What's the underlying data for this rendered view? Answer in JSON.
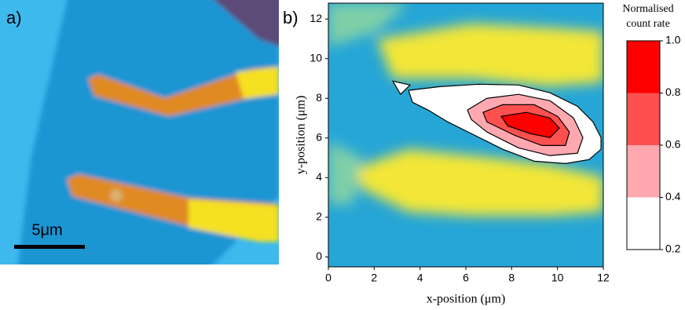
{
  "panel_a": {
    "label": "a)",
    "scale_bar_label": "5μm"
  },
  "chart_data": {
    "type": "contour",
    "label": "b)",
    "xlabel": "x-position (μm)",
    "ylabel": "y-position (μm)",
    "xlim": [
      0,
      12
    ],
    "ylim": [
      -0.5,
      12.8
    ],
    "xticks": [
      0,
      2,
      4,
      6,
      8,
      10,
      12
    ],
    "yticks": [
      0,
      2,
      4,
      6,
      8,
      10,
      12
    ],
    "contours": [
      {
        "level": 0.2,
        "x": [
          3.5,
          4.87,
          6.58,
          8.3,
          9.67,
          10.87,
          11.55,
          11.9,
          11.9,
          11.38,
          10.35,
          8.98,
          7.61,
          6.24,
          5.21,
          4.35,
          3.67
        ],
        "y": [
          8.4,
          8.59,
          8.71,
          8.67,
          8.28,
          7.6,
          6.81,
          6.02,
          5.43,
          4.91,
          4.71,
          4.83,
          5.43,
          6.22,
          6.81,
          7.41,
          7.8
        ]
      },
      {
        "level": 0.2,
        "x": [
          2.81,
          3.57,
          3.15
        ],
        "y": [
          8.87,
          8.67,
          8.2
        ]
      },
      {
        "level": 0.4,
        "x": [
          6.07,
          6.92,
          8.3,
          9.67,
          10.7,
          11.11,
          10.87,
          9.67,
          8.3,
          6.92,
          6.24
        ],
        "y": [
          7.41,
          8.0,
          8.2,
          7.88,
          7.01,
          6.02,
          5.23,
          5.11,
          5.5,
          6.3,
          6.93
        ]
      },
      {
        "level": 0.6,
        "x": [
          6.75,
          7.61,
          8.98,
          10.01,
          10.52,
          10.35,
          9.32,
          8.12,
          6.92
        ],
        "y": [
          7.29,
          7.68,
          7.68,
          7.09,
          6.3,
          5.62,
          5.62,
          6.14,
          6.81
        ]
      },
      {
        "level": 0.8,
        "x": [
          7.54,
          8.64,
          9.67,
          10.08,
          9.67,
          8.81,
          7.83
        ],
        "y": [
          7.09,
          7.29,
          7.01,
          6.5,
          6.02,
          6.22,
          6.61
        ]
      }
    ],
    "colorbar": {
      "title": [
        "Normalised",
        "count rate"
      ],
      "ticks": [
        0.2,
        0.4,
        0.6,
        0.8,
        {
          "value": 1,
          "label": "1.0"
        }
      ],
      "colors": [
        "#ffffff",
        "#ffa8b0",
        "#ff5050",
        "#ff0000"
      ]
    }
  }
}
